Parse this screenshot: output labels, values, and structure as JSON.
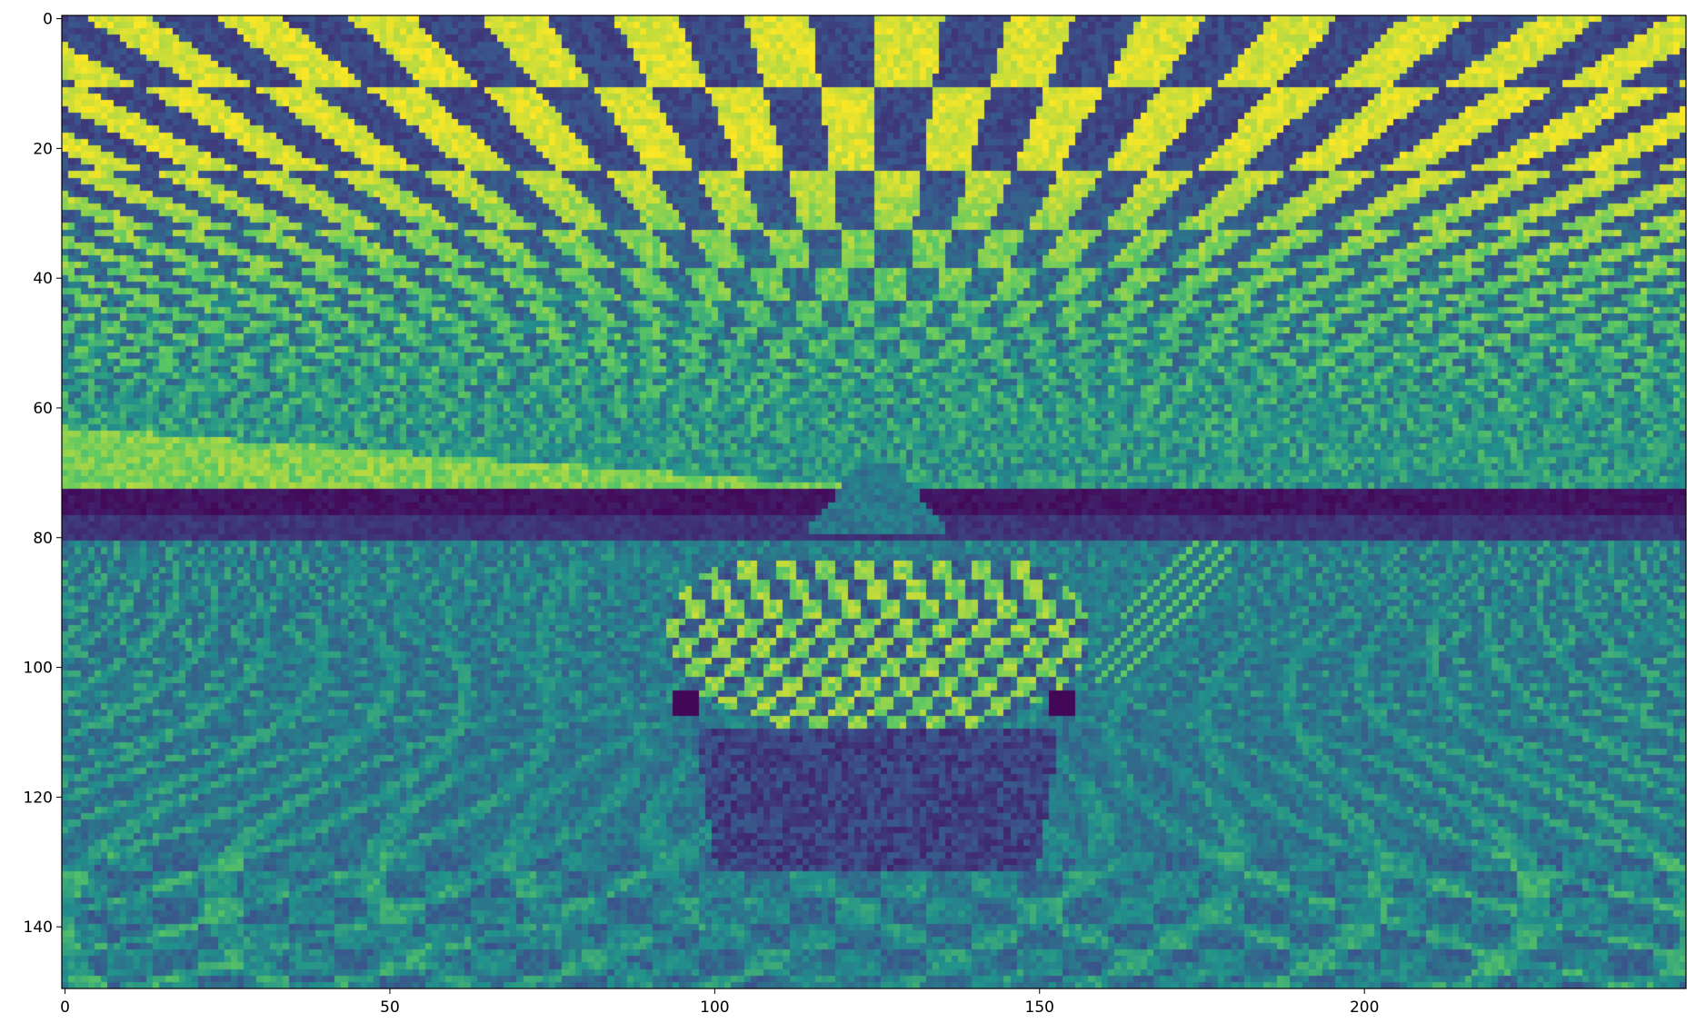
{
  "chart_data": {
    "type": "heatmap",
    "title": "",
    "xlabel": "",
    "ylabel": "",
    "colormap": "viridis",
    "colormap_stops": [
      "#440154",
      "#3b528b",
      "#21918c",
      "#5ec962",
      "#fde725"
    ],
    "xlim": [
      -0.5,
      249.5
    ],
    "ylim": [
      149.5,
      -0.5
    ],
    "image_shape": {
      "rows": 150,
      "cols": 250
    },
    "x_ticks": [
      0,
      50,
      100,
      150,
      200
    ],
    "y_ticks": [
      0,
      20,
      40,
      60,
      80,
      100,
      120,
      140
    ],
    "horizon_row": 75,
    "dark_band_rows": [
      73,
      80
    ],
    "glare_band": {
      "rows": [
        63,
        73
      ],
      "cols_end": 120
    },
    "teapot": {
      "body_center": [
        125,
        95
      ],
      "body_radii": [
        33,
        16
      ],
      "lid_rows": [
        69,
        80
      ],
      "base_rows": [
        110,
        132
      ],
      "dark_spots": [
        [
          95.5,
          105.5
        ],
        [
          153.5,
          105.5
        ]
      ]
    },
    "description_grid": "off",
    "legend": "none"
  }
}
